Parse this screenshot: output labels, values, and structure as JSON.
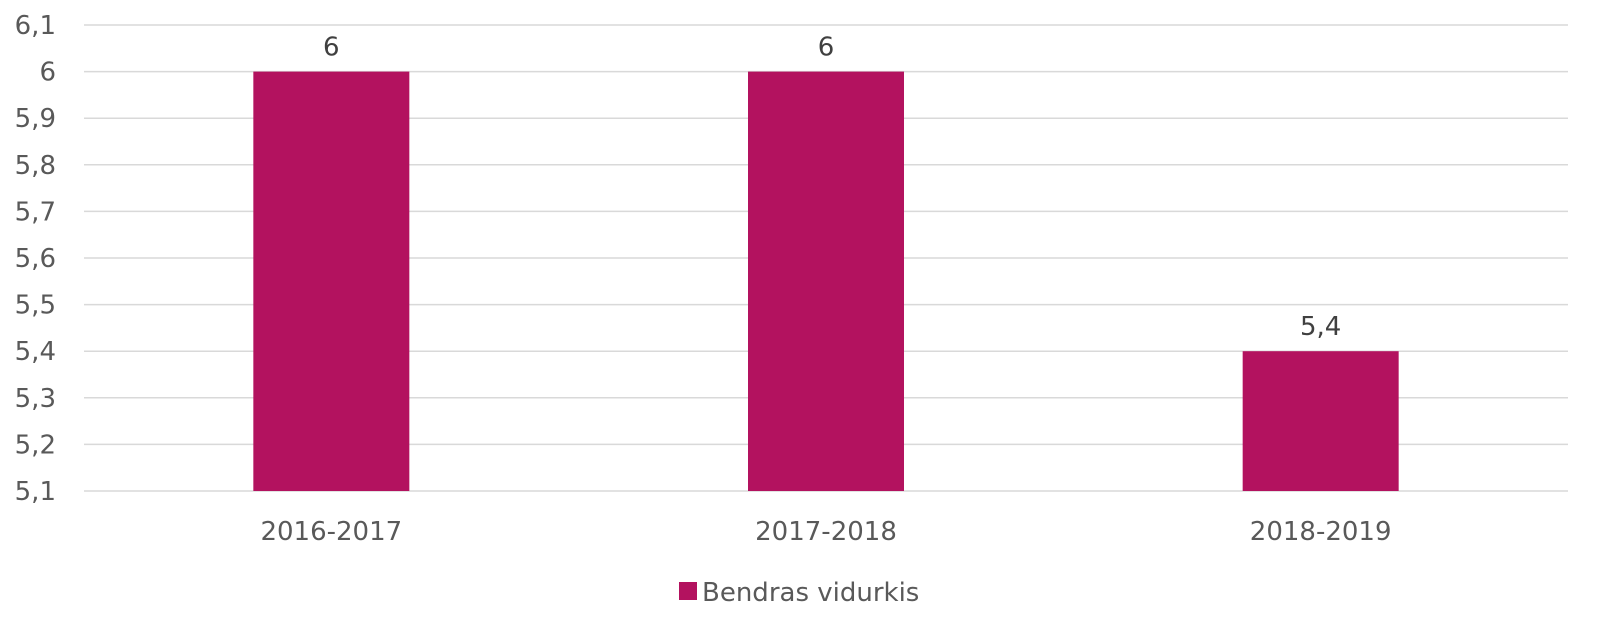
{
  "chart_data": {
    "type": "bar",
    "categories": [
      "2016-2017",
      "2017-2018",
      "2018-2019"
    ],
    "series": [
      {
        "name": "Bendras vidurkis",
        "values": [
          6,
          6,
          5.4
        ],
        "data_labels": [
          "6",
          "6",
          "5,4"
        ],
        "color": "#b3125f"
      }
    ],
    "y_ticks": [
      "5,1",
      "5,2",
      "5,3",
      "5,4",
      "5,5",
      "5,6",
      "5,7",
      "5,8",
      "5,9",
      "6",
      "6,1"
    ],
    "ylim": [
      5.1,
      6.1
    ],
    "y_step": 0.1,
    "grid": true,
    "legend_position": "bottom"
  }
}
